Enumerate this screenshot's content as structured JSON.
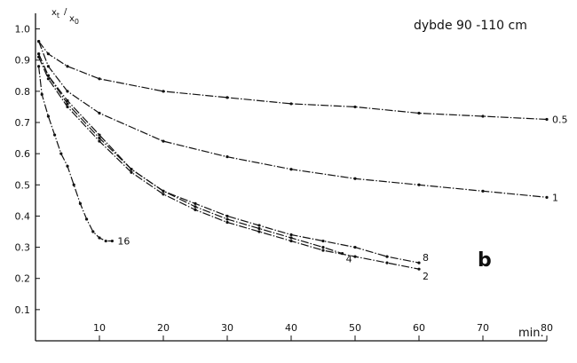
{
  "chart_data": {
    "type": "line",
    "title": "dybde 90 -110 cm",
    "panel_label": "b",
    "xlabel": "min.",
    "ylabel": "x_t/x_0",
    "ylabel_parts": {
      "num": "x",
      "num_sub": "t",
      "den": "x",
      "den_sub": "0"
    },
    "xlim": [
      0,
      80
    ],
    "ylim": [
      0,
      1.05
    ],
    "x_ticks": [
      10,
      20,
      30,
      40,
      50,
      60,
      70,
      80
    ],
    "x_tick_labels": [
      "10",
      "20",
      "30",
      "40",
      "50",
      "60",
      "70",
      "80"
    ],
    "y_ticks": [
      0.1,
      0.2,
      0.3,
      0.4,
      0.5,
      0.6,
      0.7,
      0.8,
      0.9,
      1.0
    ],
    "y_tick_labels": [
      "0.1",
      "0.2",
      "0.3",
      "0.4",
      "0.5",
      "0.6",
      "0.7",
      "0.8",
      "0.9",
      "1.0"
    ],
    "grid": false,
    "series": [
      {
        "name": "0.5",
        "x": [
          0.5,
          2,
          5,
          10,
          20,
          30,
          40,
          50,
          60,
          70,
          80
        ],
        "y": [
          0.96,
          0.92,
          0.88,
          0.84,
          0.8,
          0.78,
          0.76,
          0.75,
          0.73,
          0.72,
          0.71
        ]
      },
      {
        "name": "1",
        "x": [
          0.5,
          2,
          5,
          10,
          20,
          30,
          40,
          50,
          60,
          70,
          80
        ],
        "y": [
          0.96,
          0.88,
          0.8,
          0.73,
          0.64,
          0.59,
          0.55,
          0.52,
          0.5,
          0.48,
          0.46
        ]
      },
      {
        "name": "2",
        "x": [
          0.5,
          2,
          5,
          10,
          15,
          20,
          25,
          30,
          35,
          40,
          45,
          50,
          55,
          60
        ],
        "y": [
          0.91,
          0.84,
          0.75,
          0.64,
          0.54,
          0.47,
          0.42,
          0.38,
          0.35,
          0.32,
          0.29,
          0.27,
          0.25,
          0.23
        ]
      },
      {
        "name": "4",
        "x": [
          0.5,
          2,
          5,
          10,
          15,
          20,
          25,
          30,
          35,
          40,
          45,
          48
        ],
        "y": [
          0.92,
          0.85,
          0.76,
          0.65,
          0.55,
          0.48,
          0.43,
          0.39,
          0.36,
          0.33,
          0.3,
          0.28
        ]
      },
      {
        "name": "8",
        "x": [
          0.5,
          2,
          5,
          10,
          15,
          20,
          25,
          30,
          35,
          40,
          45,
          50,
          55,
          60
        ],
        "y": [
          0.92,
          0.85,
          0.77,
          0.66,
          0.55,
          0.48,
          0.44,
          0.4,
          0.37,
          0.34,
          0.32,
          0.3,
          0.27,
          0.25
        ]
      },
      {
        "name": "16",
        "x": [
          0.5,
          1,
          2,
          3,
          4,
          5,
          6,
          7,
          8,
          9,
          10,
          11,
          12
        ],
        "y": [
          0.88,
          0.79,
          0.72,
          0.66,
          0.6,
          0.56,
          0.5,
          0.44,
          0.39,
          0.35,
          0.33,
          0.32,
          0.32
        ]
      }
    ],
    "series_label_offsets": {
      "0.5": [
        6,
        4
      ],
      "1": [
        6,
        4
      ],
      "2": [
        4,
        12
      ],
      "4": [
        4,
        10
      ],
      "8": [
        4,
        -2
      ],
      "16": [
        6,
        4
      ]
    }
  }
}
